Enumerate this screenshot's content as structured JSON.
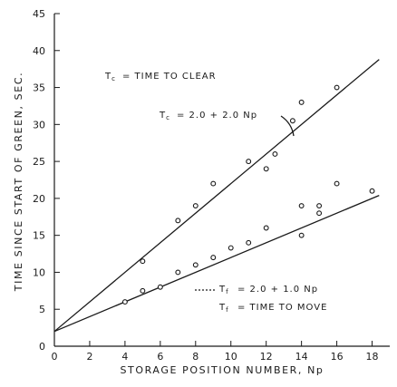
{
  "chart_data": {
    "type": "scatter",
    "xlabel": "STORAGE POSITION NUMBER, Np",
    "ylabel": "TIME SINCE START OF GREEN, SEC.",
    "xlim": [
      0,
      19
    ],
    "ylim": [
      0,
      45
    ],
    "x_ticks": [
      0,
      2,
      4,
      6,
      8,
      10,
      12,
      14,
      16,
      18
    ],
    "y_ticks": [
      0,
      5,
      10,
      15,
      20,
      25,
      30,
      35,
      40,
      45
    ],
    "grid": false,
    "series": [
      {
        "points": [
          [
            5,
            11.5
          ],
          [
            7,
            17
          ],
          [
            8,
            19
          ],
          [
            9,
            22
          ],
          [
            11,
            25
          ],
          [
            12,
            24
          ],
          [
            12.5,
            26
          ],
          [
            13.5,
            30.5
          ],
          [
            14,
            33
          ],
          [
            16,
            35
          ]
        ],
        "fit": {
          "intercept": 2.0,
          "slope": 2.0
        }
      },
      {
        "points": [
          [
            4,
            6
          ],
          [
            5,
            7.5
          ],
          [
            6,
            8
          ],
          [
            7,
            10
          ],
          [
            8,
            11
          ],
          [
            9,
            12
          ],
          [
            10,
            13.3
          ],
          [
            11,
            14
          ],
          [
            12,
            16
          ],
          [
            14,
            15
          ],
          [
            14,
            19
          ],
          [
            15,
            18
          ],
          [
            15,
            19
          ],
          [
            16,
            22
          ],
          [
            18,
            21
          ]
        ],
        "fit": {
          "intercept": 2.0,
          "slope": 1.0
        }
      }
    ],
    "annotations": {
      "tc_def": "= TIME TO CLEAR",
      "tc_eq": "= 2.0 + 2.0 Np",
      "tf_eq": "= 2.0 + 1.0 Np",
      "tf_def": "= TIME TO MOVE"
    }
  }
}
